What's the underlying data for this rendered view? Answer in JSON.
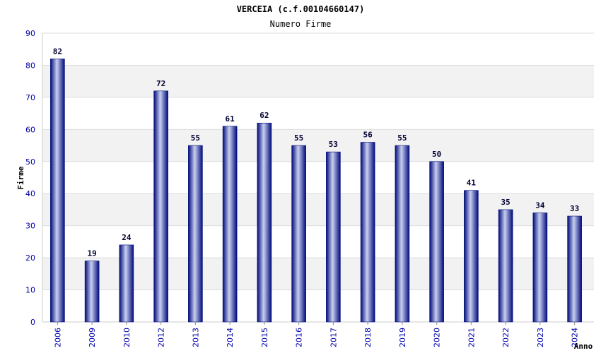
{
  "chart_data": {
    "type": "bar",
    "title": "VERCEIA (c.f.00104660147)",
    "subtitle": "Numero Firme",
    "ylabel": "Firme",
    "xlabel": "Anno",
    "ylim": [
      0,
      90
    ],
    "yticks": [
      0,
      10,
      20,
      30,
      40,
      50,
      60,
      70,
      80,
      90
    ],
    "grid": true,
    "categories": [
      "2006",
      "2009",
      "2010",
      "2012",
      "2013",
      "2014",
      "2015",
      "2016",
      "2017",
      "2018",
      "2019",
      "2020",
      "2021",
      "2022",
      "2023",
      "2024"
    ],
    "values": [
      82,
      19,
      24,
      72,
      55,
      61,
      62,
      55,
      53,
      56,
      55,
      50,
      41,
      35,
      34,
      33
    ],
    "colors": {
      "bar_dark": "#000a7a",
      "bar_light": "#c8d0f0",
      "tick_text": "#0000aa",
      "band": "#f2f2f2"
    }
  }
}
